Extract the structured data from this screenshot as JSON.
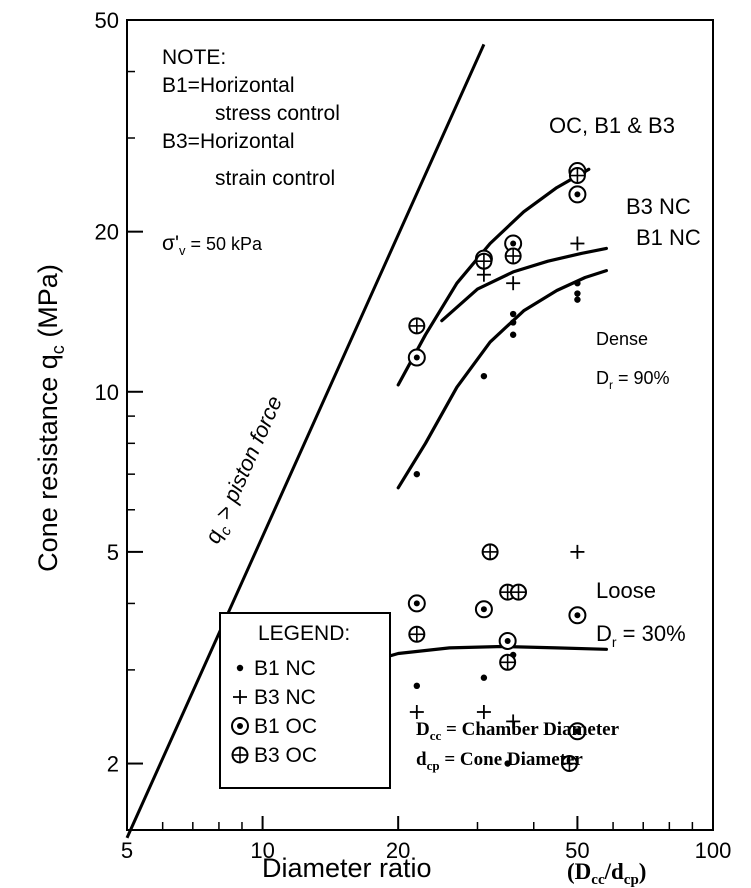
{
  "chart_data": {
    "type": "scatter",
    "x_scale": "log",
    "y_scale": "log",
    "xlim": [
      5,
      100
    ],
    "ylim": [
      1.5,
      50
    ],
    "xlabel": "Diameter ratio",
    "xlabel_suffix": {
      "open": "(D",
      "sub1": "cc",
      "slash": "/d",
      "sub2": "cp",
      "close": ")"
    },
    "ylabel": {
      "pre": "Cone resistance q",
      "sub": "c",
      "post": " (MPa)"
    },
    "x_ticks": [
      {
        "value": 5,
        "label": "5"
      },
      {
        "value": 10,
        "label": "10"
      },
      {
        "value": 20,
        "label": "20"
      },
      {
        "value": 50,
        "label": "50"
      },
      {
        "value": 100,
        "label": "100"
      }
    ],
    "x_minor_ticks": [
      6,
      7,
      8,
      9,
      30,
      40,
      60,
      70,
      80,
      90
    ],
    "y_ticks": [
      {
        "value": 2,
        "label": "2"
      },
      {
        "value": 5,
        "label": "5"
      },
      {
        "value": 10,
        "label": "10"
      },
      {
        "value": 20,
        "label": "20"
      },
      {
        "value": 50,
        "label": "50"
      }
    ],
    "y_minor_ticks": [
      3,
      4,
      6,
      7,
      8,
      9,
      30,
      40
    ],
    "note": {
      "title": "NOTE:",
      "b1_line1": "B1=Horizontal",
      "b1_line2": "stress control",
      "b3_line1": "B3=Horizontal",
      "b3_line2": "strain control"
    },
    "sigma": {
      "symbol": "σ'",
      "sub": "v",
      "rest": " = 50 kPa"
    },
    "piston_line": {
      "points": [
        [
          5,
          1.45
        ],
        [
          31,
          45
        ]
      ],
      "label": {
        "pre": "q",
        "sub": "c",
        "post": " > piston force"
      }
    },
    "curves": [
      {
        "name": "OC, B1 & B3",
        "points": [
          [
            20,
            10.3
          ],
          [
            23,
            12.8
          ],
          [
            27,
            16.0
          ],
          [
            32,
            19.0
          ],
          [
            38,
            21.8
          ],
          [
            45,
            24.2
          ],
          [
            53,
            26.2
          ]
        ]
      },
      {
        "name": "B3 NC",
        "points": [
          [
            25,
            13.6
          ],
          [
            30,
            15.6
          ],
          [
            36,
            16.8
          ],
          [
            43,
            17.6
          ],
          [
            51,
            18.2
          ],
          [
            58,
            18.6
          ]
        ]
      },
      {
        "name": "B1 NC",
        "points": [
          [
            20,
            6.6
          ],
          [
            23,
            8.0
          ],
          [
            27,
            10.2
          ],
          [
            32,
            12.4
          ],
          [
            38,
            14.2
          ],
          [
            45,
            15.5
          ],
          [
            52,
            16.4
          ],
          [
            58,
            16.9
          ]
        ]
      },
      {
        "name": "",
        "points": [
          [
            16,
            3.05
          ],
          [
            20,
            3.22
          ],
          [
            26,
            3.3
          ],
          [
            34,
            3.32
          ],
          [
            45,
            3.3
          ],
          [
            58,
            3.28
          ]
        ]
      }
    ],
    "curve_labels": [
      {
        "text": "OC, B1 & B3",
        "x": 52,
        "y": 30
      },
      {
        "text": "B3 NC",
        "x": 60,
        "y": 20
      },
      {
        "text": "B1 NC",
        "x": 60,
        "y": 16.8
      }
    ],
    "region_labels": {
      "dense": "Dense",
      "dense_dr": {
        "pre": "D",
        "sub": "r",
        "post": " = 90%"
      },
      "loose": "Loose",
      "loose_dr": {
        "pre": "D",
        "sub": "r",
        "post": " = 30%"
      }
    },
    "series": [
      {
        "name": "B1 NC",
        "marker": "dot",
        "points": [
          [
            22,
            7.0
          ],
          [
            31,
            10.7
          ],
          [
            36,
            12.8
          ],
          [
            36,
            13.5
          ],
          [
            36,
            14.0
          ],
          [
            50,
            14.9
          ],
          [
            50,
            15.3
          ],
          [
            50,
            16.0
          ],
          [
            22,
            2.8
          ],
          [
            31,
            2.9
          ],
          [
            35,
            2.0
          ],
          [
            36,
            3.2
          ]
        ]
      },
      {
        "name": "B3 NC",
        "marker": "plus",
        "points": [
          [
            31,
            16.6
          ],
          [
            36,
            16.0
          ],
          [
            50,
            19.0
          ],
          [
            22,
            2.5
          ],
          [
            31,
            2.5
          ],
          [
            36,
            2.4
          ],
          [
            50,
            5.0
          ]
        ]
      },
      {
        "name": "B1 OC",
        "marker": "circle-dot",
        "points": [
          [
            22,
            11.6
          ],
          [
            31,
            17.8
          ],
          [
            36,
            19.0
          ],
          [
            50,
            26.0
          ],
          [
            50,
            23.5
          ],
          [
            22,
            4.0
          ],
          [
            31,
            3.9
          ],
          [
            35,
            3.4
          ],
          [
            50,
            3.8
          ],
          [
            50,
            2.3
          ]
        ]
      },
      {
        "name": "B3 OC",
        "marker": "circle-plus",
        "points": [
          [
            22,
            13.3
          ],
          [
            31,
            17.6
          ],
          [
            36,
            18.0
          ],
          [
            50,
            25.5
          ],
          [
            22,
            3.5
          ],
          [
            32,
            5.0
          ],
          [
            35,
            4.2
          ],
          [
            37,
            4.2
          ],
          [
            35,
            3.1
          ],
          [
            48,
            2.0
          ]
        ]
      }
    ],
    "legend": {
      "title": "LEGEND:",
      "entries": [
        {
          "marker": "dot",
          "label": "B1 NC"
        },
        {
          "marker": "plus",
          "label": "B3 NC"
        },
        {
          "marker": "circle-dot",
          "label": "B1 OC"
        },
        {
          "marker": "circle-plus",
          "label": "B3 OC"
        }
      ]
    },
    "definitions": [
      {
        "sym": "D",
        "sub": "cc",
        "rest": " = Chamber Diameter"
      },
      {
        "sym": "d",
        "sub": "cp",
        "rest": " = Cone Diameter"
      }
    ]
  }
}
